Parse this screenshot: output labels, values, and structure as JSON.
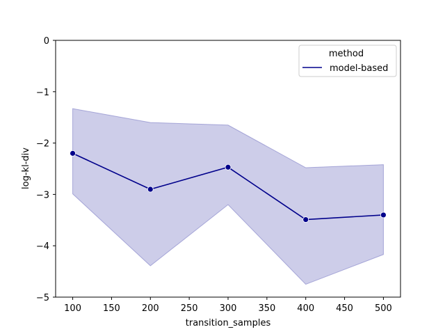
{
  "chart_data": {
    "type": "line",
    "xlabel": "transition_samples",
    "ylabel": "log-kl-div",
    "xlim": [
      78,
      522
    ],
    "ylim": [
      -5,
      0
    ],
    "xticks": [
      100,
      150,
      200,
      250,
      300,
      350,
      400,
      450,
      500
    ],
    "yticks": [
      0,
      -1,
      -2,
      -3,
      -4,
      -5
    ],
    "ytick_labels": [
      "0",
      "−1",
      "−2",
      "−3",
      "−4",
      "−5"
    ],
    "grid": false,
    "legend": {
      "title": "method",
      "placement": "top-right",
      "entries": [
        "model-based"
      ]
    },
    "series": [
      {
        "name": "model-based",
        "color": "#00008b",
        "band_color": "#7b7bc4",
        "x": [
          100,
          200,
          300,
          400,
          500
        ],
        "y": [
          -2.2,
          -2.9,
          -2.47,
          -3.49,
          -3.4
        ],
        "ci_upper": [
          -1.33,
          -1.6,
          -1.65,
          -2.48,
          -2.42
        ],
        "ci_lower": [
          -2.99,
          -4.39,
          -3.2,
          -4.75,
          -4.17
        ]
      }
    ]
  }
}
